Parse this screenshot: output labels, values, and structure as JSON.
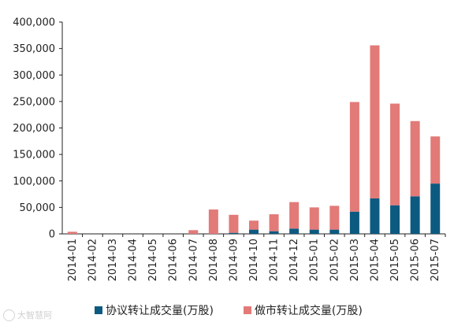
{
  "chart_data": {
    "type": "bar",
    "stacked": true,
    "categories": [
      "2014-01",
      "2014-02",
      "2014-03",
      "2014-04",
      "2014-05",
      "2014-06",
      "2014-07",
      "2014-08",
      "2014-09",
      "2014-10",
      "2014-11",
      "2014-12",
      "2015-01",
      "2015-02",
      "2015-03",
      "2015-04",
      "2015-05",
      "2015-06",
      "2015-07"
    ],
    "series": [
      {
        "name": "协议转让成交量(万股)",
        "color": "#0d5a80",
        "values": [
          0,
          0,
          0,
          0,
          0,
          0,
          0,
          0,
          2000,
          8000,
          5000,
          10000,
          8000,
          8000,
          42000,
          67000,
          54000,
          71000,
          95000
        ]
      },
      {
        "name": "做市转让成交量(万股)",
        "color": "#e27a78",
        "values": [
          4000,
          0,
          0,
          0,
          0,
          0,
          7000,
          46000,
          34000,
          17000,
          32000,
          50000,
          42000,
          45000,
          207000,
          289000,
          192000,
          142000,
          89000
        ]
      }
    ],
    "y_ticks": [
      "0",
      "50,000",
      "100,000",
      "150,000",
      "200,000",
      "250,000",
      "300,000",
      "350,000",
      "400,000"
    ],
    "ylim": [
      0,
      400000
    ],
    "grid": false,
    "legend_position": "bottom"
  },
  "watermark": {
    "text": "大智慧阿",
    "icon": "watermark-logo-icon"
  }
}
